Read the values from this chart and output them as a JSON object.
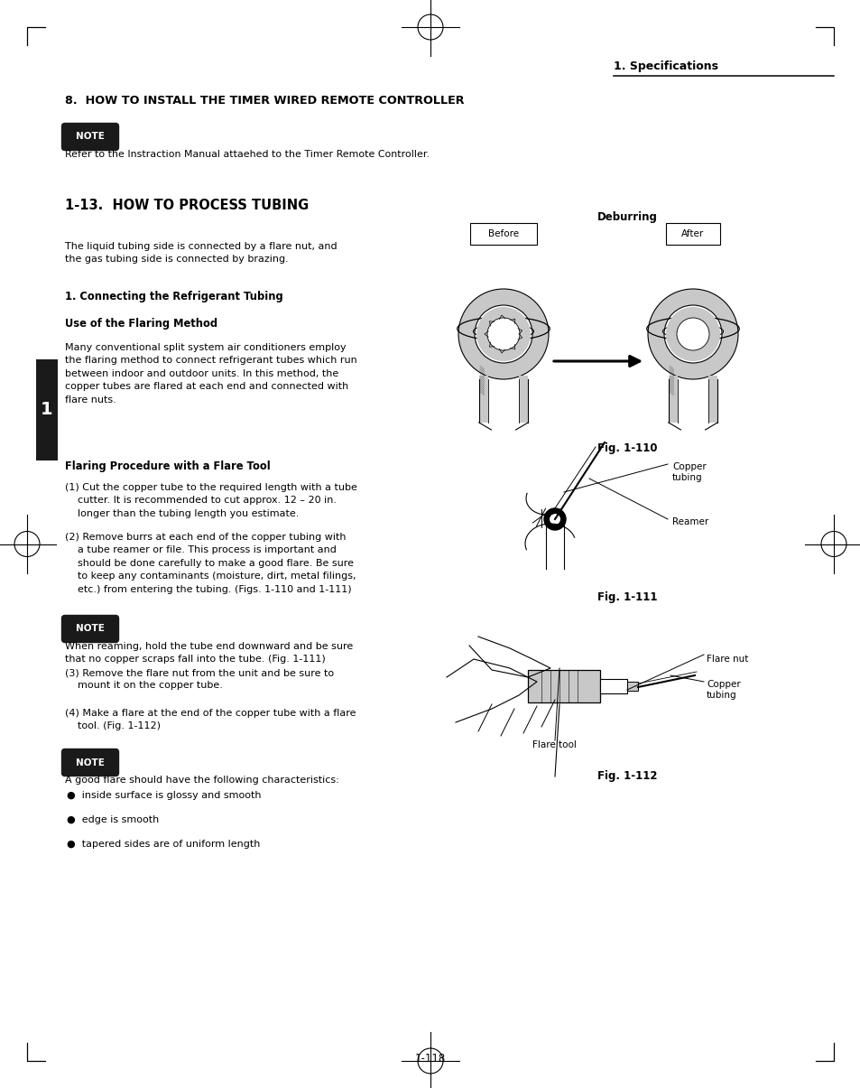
{
  "page_bg": "#ffffff",
  "page_width": 9.54,
  "page_height": 12.05,
  "dpi": 100,
  "header_right_text": "1. Specifications",
  "section_title_1": "8.  HOW TO INSTALL THE TIMER WIRED REMOTE CONTROLLER",
  "note_bg": "#1a1a1a",
  "note_text_color": "#ffffff",
  "note_label": "NOTE",
  "note1_body": "Refer to the Instraction Manual attaehed to the Timer Remote Controller.",
  "section_title_2": "1-13.  HOW TO PROCESS TUBING",
  "para1": "The liquid tubing side is connected by a flare nut, and\nthe gas tubing side is connected by brazing.",
  "sub1_title": "1. Connecting the Refrigerant Tubing",
  "sub2_title": "Use of the Flaring Method",
  "para2": "Many conventional split system air conditioners employ\nthe flaring method to connect refrigerant tubes which run\nbetween indoor and outdoor units. In this method, the\ncopper tubes are flared at each end and connected with\nflare nuts.",
  "sub3_title": "Flaring Procedure with a Flare Tool",
  "step1": "(1) Cut the copper tube to the required length with a tube\n    cutter. It is recommended to cut approx. 12 – 20 in.\n    longer than the tubing length you estimate.",
  "step2": "(2) Remove burrs at each end of the copper tubing with\n    a tube reamer or file. This process is important and\n    should be done carefully to make a good flare. Be sure\n    to keep any contaminants (moisture, dirt, metal filings,\n    etc.) from entering the tubing. (Figs. 1-110 and 1-111)",
  "note2_body": "When reaming, hold the tube end downward and be sure\nthat no copper scraps fall into the tube. (Fig. 1-111)",
  "step3": "(3) Remove the flare nut from the unit and be sure to\n    mount it on the copper tube.",
  "step4": "(4) Make a flare at the end of the copper tube with a flare\n    tool. (Fig. 1-112)",
  "note3_body": "A good flare should have the following characteristics:",
  "bullet1": "●  inside surface is glossy and smooth",
  "bullet2": "●  edge is smooth",
  "bullet3": "●  tapered sides are of uniform length",
  "fig110_label": "Fig. 1-110",
  "fig111_label": "Fig. 1-111",
  "fig112_label": "Fig. 1-112",
  "deburring_label": "Deburring",
  "before_label": "Before",
  "after_label": "After",
  "copper_tubing_label": "Copper\ntubing",
  "reamer_label": "Reamer",
  "flare_nut_label": "Flare nut",
  "copper_tubing2_label": "Copper\ntubing",
  "flare_tool_label": "Flare tool",
  "tab_label": "1",
  "tab_bg": "#1a1a1a",
  "tab_text_color": "#ffffff",
  "page_number": "1-118",
  "corner_mark_color": "#000000",
  "gray_fill": "#c8c8c8",
  "hatch_color": "#888888"
}
